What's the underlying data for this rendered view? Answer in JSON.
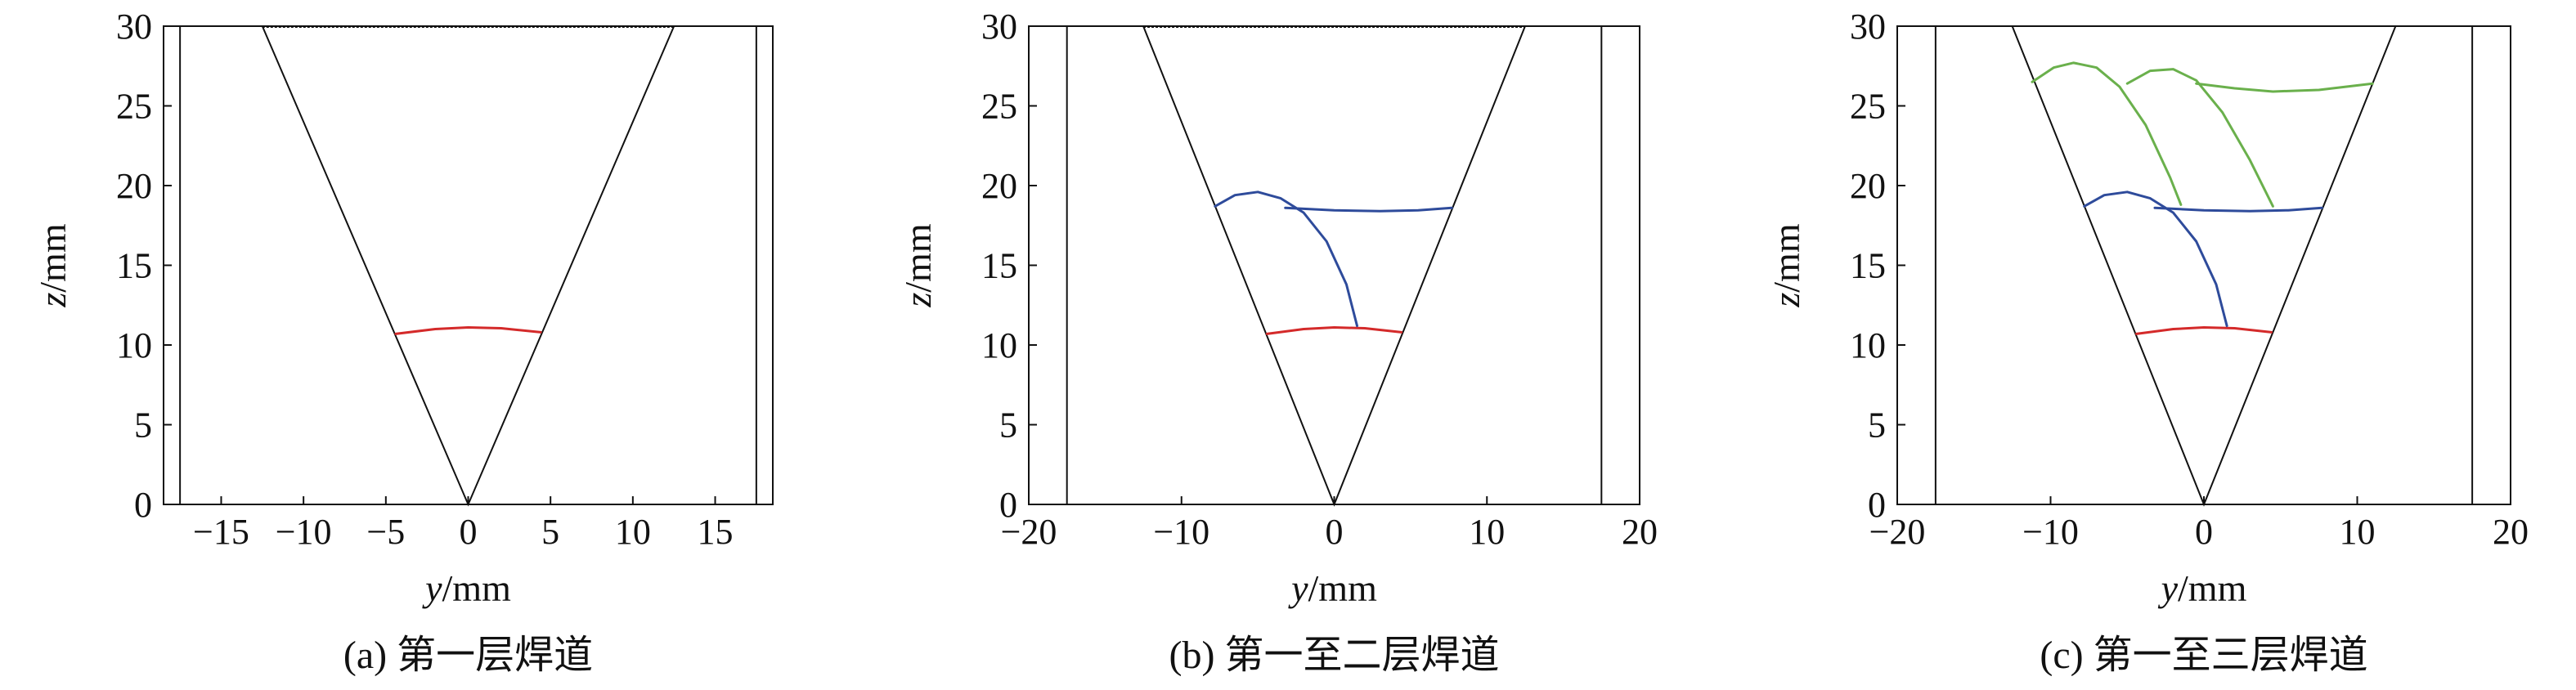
{
  "chart_data": [
    {
      "type": "line",
      "caption": "(a) 第一层焊道",
      "xlabel_var": "y",
      "xlabel_unit": "/mm",
      "ylabel_var": "z",
      "ylabel_unit": "/mm",
      "xlim": [
        -18.5,
        18.5
      ],
      "ylim": [
        0,
        30
      ],
      "xticks": [
        -15,
        -10,
        -5,
        0,
        5,
        10,
        15
      ],
      "yticks": [
        0,
        5,
        10,
        15,
        20,
        25,
        30
      ],
      "grid": false,
      "walls": [
        -17.5,
        17.5
      ],
      "groove": [
        [
          -12.5,
          30
        ],
        [
          0,
          0
        ],
        [
          12.5,
          30
        ]
      ],
      "top_line": [
        [
          -12.5,
          30
        ],
        [
          12.5,
          30
        ]
      ],
      "series": [
        {
          "color": "#d42a2a",
          "points": [
            [
              -4.4,
              10.7
            ],
            [
              -2,
              11.0
            ],
            [
              0,
              11.1
            ],
            [
              2,
              11.05
            ],
            [
              4.4,
              10.8
            ]
          ]
        }
      ]
    },
    {
      "type": "line",
      "caption": "(b) 第一至二层焊道",
      "xlabel_var": "y",
      "xlabel_unit": "/mm",
      "ylabel_var": "z",
      "ylabel_unit": "/mm",
      "xlim": [
        -20,
        20
      ],
      "ylim": [
        0,
        30
      ],
      "xticks": [
        -20,
        -10,
        0,
        10,
        20
      ],
      "yticks": [
        0,
        5,
        10,
        15,
        20,
        25,
        30
      ],
      "grid": false,
      "walls": [
        -17.5,
        17.5
      ],
      "groove": [
        [
          -12.5,
          30
        ],
        [
          0,
          0
        ],
        [
          12.5,
          30
        ]
      ],
      "top_line": [
        [
          -12.5,
          30
        ],
        [
          12.5,
          30
        ]
      ],
      "series": [
        {
          "color": "#d42a2a",
          "points": [
            [
              -4.4,
              10.7
            ],
            [
              -2,
              11.0
            ],
            [
              0,
              11.1
            ],
            [
              2,
              11.05
            ],
            [
              4.4,
              10.8
            ]
          ]
        },
        {
          "color": "#2e4b9b",
          "points": [
            [
              -7.8,
              18.7
            ],
            [
              -6.5,
              19.4
            ],
            [
              -5,
              19.6
            ],
            [
              -3.5,
              19.2
            ],
            [
              -2,
              18.3
            ],
            [
              -0.5,
              16.5
            ],
            [
              0.8,
              13.8
            ],
            [
              1.5,
              11.2
            ]
          ]
        },
        {
          "color": "#2e4b9b",
          "points": [
            [
              -3.2,
              18.6
            ],
            [
              0,
              18.45
            ],
            [
              3,
              18.4
            ],
            [
              5.5,
              18.45
            ],
            [
              7.7,
              18.6
            ]
          ]
        }
      ]
    },
    {
      "type": "line",
      "caption": "(c) 第一至三层焊道",
      "xlabel_var": "y",
      "xlabel_unit": "/mm",
      "ylabel_var": "z",
      "ylabel_unit": "/mm",
      "xlim": [
        -20,
        20
      ],
      "ylim": [
        0,
        30
      ],
      "xticks": [
        -20,
        -10,
        0,
        10,
        20
      ],
      "yticks": [
        0,
        5,
        10,
        15,
        20,
        25,
        30
      ],
      "grid": false,
      "walls": [
        -17.5,
        17.5
      ],
      "groove": [
        [
          -12.5,
          30
        ],
        [
          0,
          0
        ],
        [
          12.5,
          30
        ]
      ],
      "top_line": [],
      "series": [
        {
          "color": "#d42a2a",
          "points": [
            [
              -4.4,
              10.7
            ],
            [
              -2,
              11.0
            ],
            [
              0,
              11.1
            ],
            [
              2,
              11.05
            ],
            [
              4.4,
              10.8
            ]
          ]
        },
        {
          "color": "#2e4b9b",
          "points": [
            [
              -7.8,
              18.7
            ],
            [
              -6.5,
              19.4
            ],
            [
              -5,
              19.6
            ],
            [
              -3.5,
              19.2
            ],
            [
              -2,
              18.3
            ],
            [
              -0.5,
              16.5
            ],
            [
              0.8,
              13.8
            ],
            [
              1.5,
              11.2
            ]
          ]
        },
        {
          "color": "#2e4b9b",
          "points": [
            [
              -3.2,
              18.6
            ],
            [
              0,
              18.45
            ],
            [
              3,
              18.4
            ],
            [
              5.5,
              18.45
            ],
            [
              7.7,
              18.6
            ]
          ]
        },
        {
          "color": "#6ab04c",
          "points": [
            [
              -11.2,
              26.5
            ],
            [
              -9.8,
              27.4
            ],
            [
              -8.5,
              27.7
            ],
            [
              -7,
              27.4
            ],
            [
              -5.5,
              26.2
            ],
            [
              -3.8,
              23.8
            ],
            [
              -2.2,
              20.5
            ],
            [
              -1.5,
              18.8
            ]
          ]
        },
        {
          "color": "#6ab04c",
          "points": [
            [
              -5,
              26.4
            ],
            [
              -3.5,
              27.2
            ],
            [
              -2,
              27.3
            ],
            [
              -0.5,
              26.6
            ],
            [
              1.2,
              24.6
            ],
            [
              3,
              21.6
            ],
            [
              4.5,
              18.7
            ]
          ]
        },
        {
          "color": "#6ab04c",
          "points": [
            [
              -0.5,
              26.4
            ],
            [
              2,
              26.1
            ],
            [
              4.5,
              25.9
            ],
            [
              7.5,
              26.0
            ],
            [
              11,
              26.4
            ]
          ]
        }
      ]
    }
  ]
}
